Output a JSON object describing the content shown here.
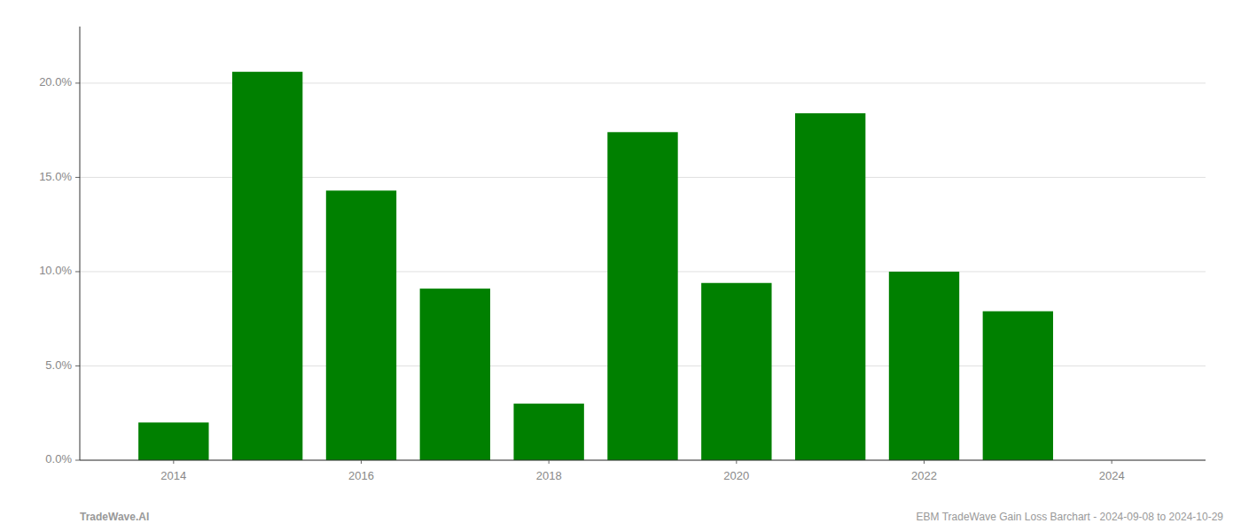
{
  "chart_data": {
    "type": "bar",
    "x": [
      2014,
      2015,
      2016,
      2017,
      2018,
      2019,
      2020,
      2021,
      2022,
      2023
    ],
    "values": [
      0.02,
      0.206,
      0.143,
      0.091,
      0.03,
      0.174,
      0.094,
      0.184,
      0.1,
      0.079
    ],
    "color": "#008000",
    "xlim": [
      2013.0,
      2025.0
    ],
    "xticks": [
      2014,
      2016,
      2018,
      2020,
      2022,
      2024
    ],
    "ylim": [
      0,
      0.23
    ],
    "yticks": [
      {
        "value": 0.0,
        "label": "0.0%"
      },
      {
        "value": 0.05,
        "label": "5.0%"
      },
      {
        "value": 0.1,
        "label": "10.0%"
      },
      {
        "value": 0.15,
        "label": "15.0%"
      },
      {
        "value": 0.2,
        "label": "20.0%"
      }
    ],
    "grid": true,
    "annotations": [
      "TradeWave.AI",
      "EBM TradeWave Gain Loss Barchart - 2024-09-08 to 2024-10-29"
    ]
  }
}
